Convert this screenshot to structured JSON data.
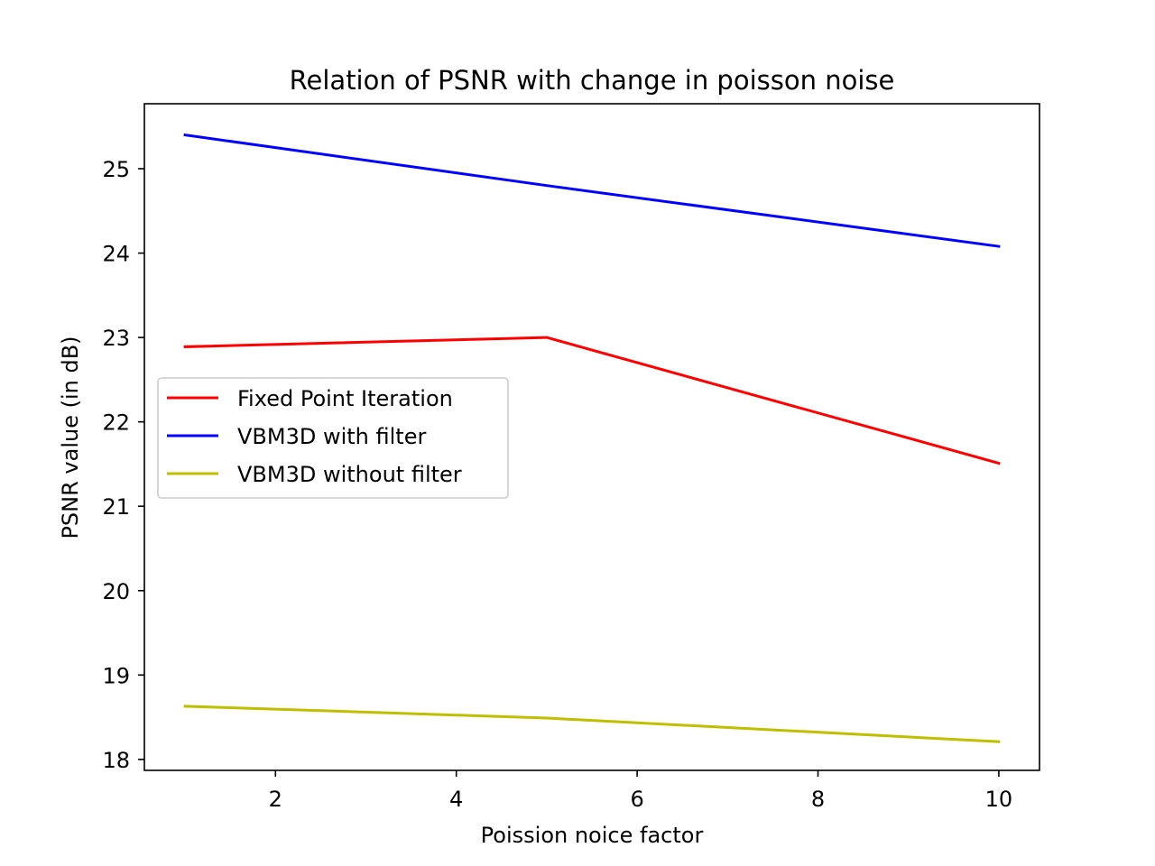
{
  "chart_data": {
    "type": "line",
    "title": "Relation of PSNR with change in poisson noise",
    "xlabel": "Poission noice factor",
    "ylabel": "PSNR value (in dB)",
    "xlim": [
      0.55,
      10.45
    ],
    "ylim": [
      17.87,
      25.77
    ],
    "xticks": [
      2,
      4,
      6,
      8,
      10
    ],
    "yticks": [
      18,
      19,
      20,
      21,
      22,
      23,
      24,
      25
    ],
    "grid": false,
    "legend_position": "center-left",
    "series": [
      {
        "name": "Fixed Point Iteration",
        "color": "#ff0000",
        "x": [
          1,
          5,
          10
        ],
        "y": [
          22.89,
          23.0,
          21.51
        ]
      },
      {
        "name": "VBM3D with filter",
        "color": "#0000ff",
        "x": [
          1,
          5,
          10
        ],
        "y": [
          25.4,
          24.8,
          24.08
        ]
      },
      {
        "name": "VBM3D without filter",
        "color": "#bfbf00",
        "x": [
          1,
          5,
          10
        ],
        "y": [
          18.63,
          18.49,
          18.21
        ]
      }
    ]
  }
}
